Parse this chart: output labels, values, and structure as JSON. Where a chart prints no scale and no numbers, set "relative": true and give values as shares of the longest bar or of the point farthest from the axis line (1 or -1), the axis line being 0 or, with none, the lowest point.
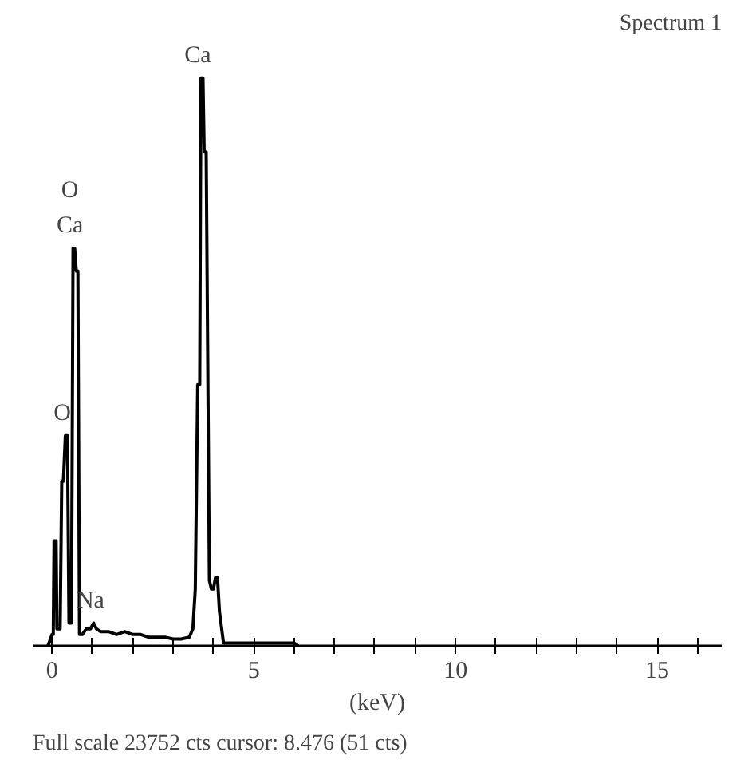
{
  "chart_data": {
    "type": "line",
    "title": "Spectrum 1",
    "xlabel": "(keV)",
    "relative": true,
    "xlim": [
      -0.48,
      16.6
    ],
    "xticks": [
      0,
      {
        "value": 1,
        "label": null
      },
      {
        "value": 2,
        "label": null
      },
      {
        "value": 3,
        "label": null
      },
      {
        "value": 4,
        "label": null
      },
      5,
      {
        "value": 6,
        "label": null
      },
      {
        "value": 7,
        "label": null
      },
      {
        "value": 8,
        "label": null
      },
      {
        "value": 9,
        "label": null
      },
      10,
      {
        "value": 11,
        "label": null
      },
      {
        "value": 12,
        "label": null
      },
      {
        "value": 13,
        "label": null
      },
      {
        "value": 14,
        "label": null
      },
      15,
      {
        "value": 16,
        "label": null
      }
    ],
    "series": [
      {
        "color": "#000000",
        "x": [
          -0.1,
          0.0,
          0.03,
          0.05,
          0.1,
          0.12,
          0.2,
          0.24,
          0.28,
          0.33,
          0.38,
          0.42,
          0.48,
          0.52,
          0.56,
          0.6,
          0.64,
          0.68,
          0.75,
          0.85,
          0.95,
          1.03,
          1.1,
          1.2,
          1.4,
          1.6,
          1.8,
          2.0,
          2.2,
          2.4,
          2.6,
          2.8,
          3.0,
          3.2,
          3.4,
          3.49,
          3.55,
          3.61,
          3.66,
          3.69,
          3.74,
          3.77,
          3.82,
          3.9,
          3.95,
          4.0,
          4.05,
          4.1,
          4.15,
          4.25,
          4.5,
          5.0,
          5.5,
          6.0,
          6.1
        ],
        "values": [
          0,
          0.02,
          0.02,
          0.185,
          0.185,
          0.03,
          0.03,
          0.29,
          0.29,
          0.37,
          0.37,
          0.04,
          0.04,
          0.7,
          0.7,
          0.66,
          0.66,
          0.02,
          0.02,
          0.03,
          0.03,
          0.04,
          0.03,
          0.025,
          0.025,
          0.02,
          0.025,
          0.02,
          0.02,
          0.015,
          0.015,
          0.015,
          0.012,
          0.012,
          0.015,
          0.03,
          0.1,
          0.46,
          0.46,
          1.0,
          1.0,
          0.87,
          0.87,
          0.115,
          0.1,
          0.1,
          0.12,
          0.12,
          0.06,
          0.005,
          0.005,
          0.005,
          0.005,
          0.005,
          0
        ]
      }
    ],
    "annotations": [
      {
        "text": "Ca",
        "x": 3.69,
        "y": 1.0
      },
      {
        "text": "O",
        "x": 0.52,
        "y": 0.7
      },
      {
        "text": "Ca",
        "x": 0.52,
        "y": 0.7
      },
      {
        "text": "O",
        "x": 0.33,
        "y": 0.37
      },
      {
        "text": "Na",
        "x": 1.03,
        "y": 0.04
      },
      "Full scale 23752 cts cursor: 8.476 (51 cts)"
    ],
    "marker": "none",
    "line_style": "solid"
  }
}
